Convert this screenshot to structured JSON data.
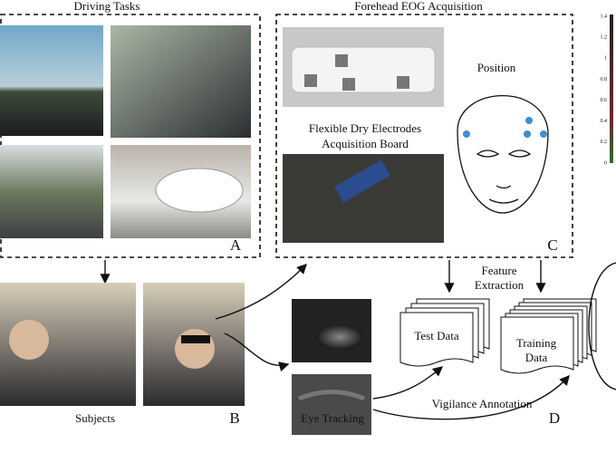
{
  "panels": {
    "driving_tasks": {
      "title": "Driving Tasks",
      "label": "A"
    },
    "eog": {
      "title": "Forehead EOG Acquisition",
      "caption_lines": [
        "Flexible Dry Electrodes",
        "Acquisition Board"
      ],
      "position": "Position",
      "label": "C"
    },
    "subjects": {
      "caption": "Subjects",
      "label": "B"
    },
    "eye_tracking": {
      "caption": "Eye Tracking"
    },
    "processing": {
      "feature_extraction": [
        "Feature",
        "Extraction"
      ],
      "test_data": "Test Data",
      "training_data": [
        "Training",
        "Data"
      ],
      "annotation": "Vigilance Annotation",
      "label": "D"
    }
  },
  "colorbar": {
    "ticks": [
      "1.4",
      "1.2",
      "1",
      "0.8",
      "0.6",
      "0.4",
      "0.2",
      "0"
    ]
  }
}
